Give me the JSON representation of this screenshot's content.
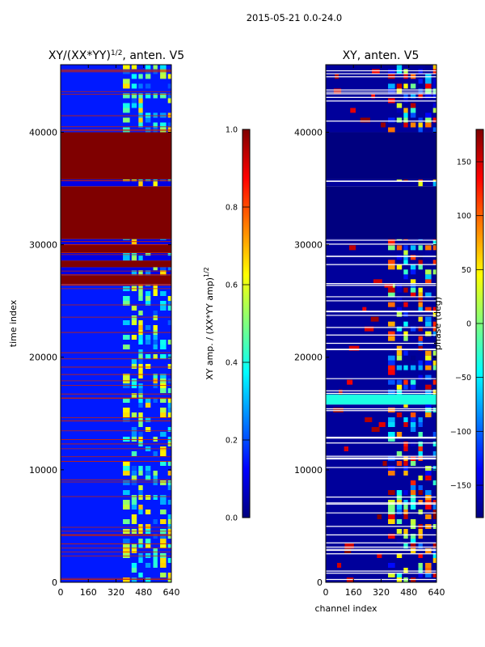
{
  "suptitle": "2015-05-21 0.0-24.0",
  "colormap": [
    "#00007f",
    "#0000ff",
    "#007fff",
    "#00ffff",
    "#7fff7f",
    "#ffff00",
    "#ff7f00",
    "#ff0000",
    "#7f0000"
  ],
  "chart_data": [
    {
      "type": "heatmap",
      "title_main": "XY/(XX*YY)",
      "title_sup": "1/2",
      "title_tail": ", anten. V5",
      "xlabel": "",
      "ylabel": "time index",
      "xlim": [
        0,
        640
      ],
      "ylim": [
        0,
        46000
      ],
      "xticks": [
        0,
        160,
        320,
        480,
        640
      ],
      "yticks": [
        0,
        10000,
        20000,
        30000,
        40000
      ],
      "bands": [
        {
          "from": 0,
          "to": 26500,
          "value": 0.15,
          "channel_structure": true
        },
        {
          "from": 26500,
          "to": 27300,
          "value": 1.0
        },
        {
          "from": 27300,
          "to": 28000,
          "value": 0.1,
          "channel_structure": true
        },
        {
          "from": 28000,
          "to": 28600,
          "value": 1.0
        },
        {
          "from": 28600,
          "to": 29300,
          "value": 0.1,
          "channel_structure": true
        },
        {
          "from": 29300,
          "to": 30000,
          "value": 1.0
        },
        {
          "from": 30000,
          "to": 30500,
          "value": 0.1,
          "channel_structure": true
        },
        {
          "from": 30500,
          "to": 35200,
          "value": 1.0
        },
        {
          "from": 35200,
          "to": 35800,
          "value": 0.1,
          "channel_structure": true
        },
        {
          "from": 35800,
          "to": 40000,
          "value": 1.0
        },
        {
          "from": 40000,
          "to": 46000,
          "value": 0.15,
          "channel_structure": true
        }
      ],
      "colorbar": {
        "label_main": "XY amp. / (XX*YY amp)",
        "label_sup": "1/2",
        "min": 0.0,
        "max": 1.0,
        "ticks": [
          "0.0",
          "0.2",
          "0.4",
          "0.6",
          "0.8",
          "1.0"
        ]
      }
    },
    {
      "type": "heatmap",
      "title": "XY, anten. V5",
      "xlabel": "channel index",
      "ylabel": "",
      "xlim": [
        0,
        640
      ],
      "ylim": [
        0,
        46000
      ],
      "xticks": [
        0,
        160,
        320,
        480,
        640
      ],
      "yticks": [
        0,
        10000,
        20000,
        30000,
        40000
      ],
      "bands": [
        {
          "from": 0,
          "to": 15800,
          "value": -170,
          "channel_structure": true
        },
        {
          "from": 15800,
          "to": 16700,
          "value": -35
        },
        {
          "from": 16700,
          "to": 26500,
          "value": -170,
          "channel_structure": true
        },
        {
          "from": 26500,
          "to": 30500,
          "value": -170,
          "channel_structure": true
        },
        {
          "from": 30500,
          "to": 35200,
          "value": -180
        },
        {
          "from": 35200,
          "to": 35800,
          "value": -170,
          "channel_structure": true
        },
        {
          "from": 35800,
          "to": 40000,
          "value": -180
        },
        {
          "from": 40000,
          "to": 46000,
          "value": -170,
          "channel_structure": true
        }
      ],
      "colorbar": {
        "label": "phase (deg)",
        "min": -180,
        "max": 180,
        "ticks": [
          "150",
          "100",
          "50",
          "0",
          "−50",
          "−100",
          "−150"
        ],
        "tick_values": [
          150,
          100,
          50,
          0,
          -50,
          -100,
          -150
        ]
      }
    }
  ]
}
